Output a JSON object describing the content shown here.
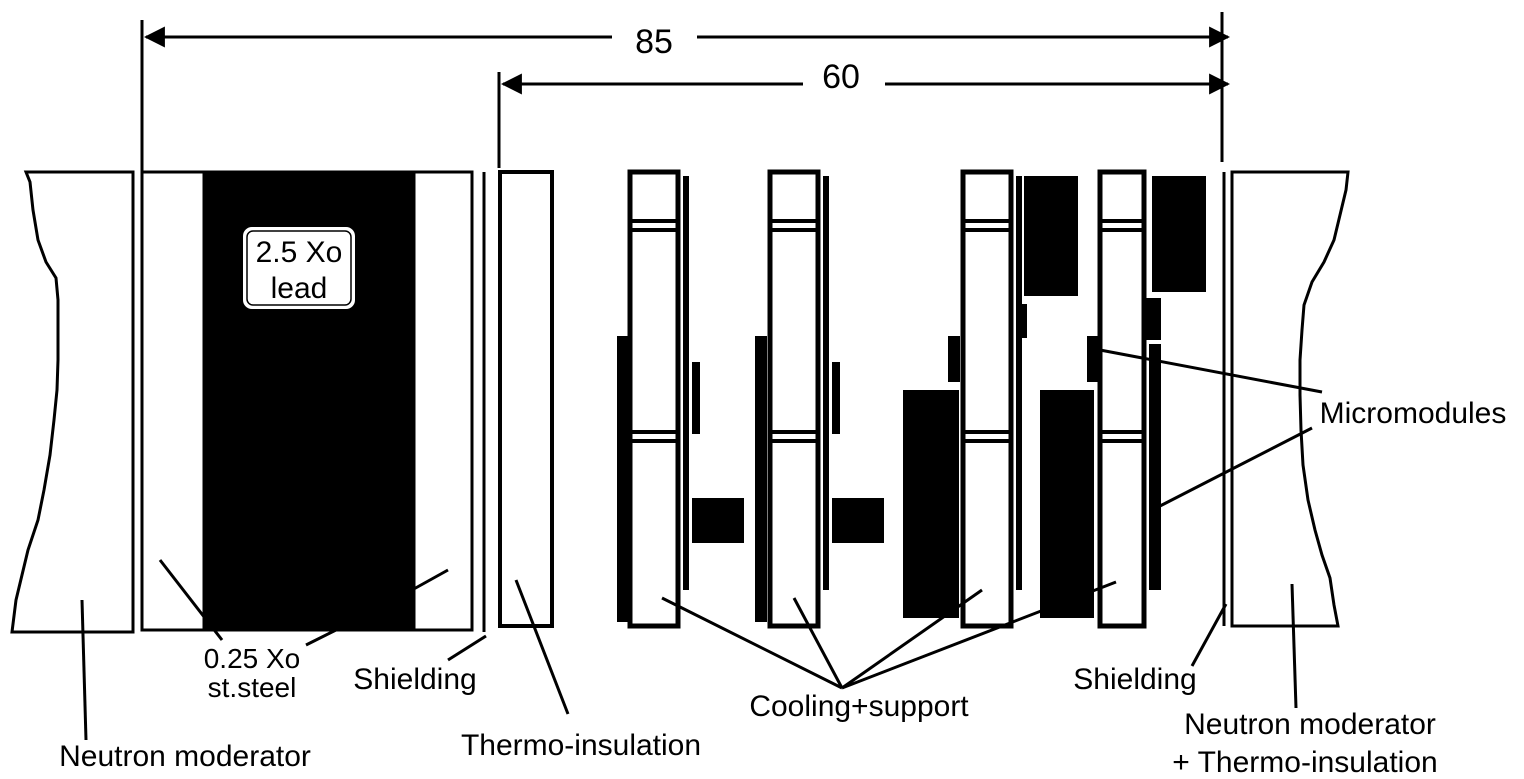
{
  "dimensions": {
    "outer": "85",
    "inner": "60"
  },
  "labels": {
    "lead_line1": "2.5 Xo",
    "lead_line2": "lead",
    "steel_line1": "0.25 Xo",
    "steel_line2": "st.steel",
    "shielding_left": "Shielding",
    "shielding_right": "Shielding",
    "thermo_insulation": "Thermo-insulation",
    "cooling_support": "Cooling+support",
    "micromodules": "Micromodules",
    "neutron_moderator_left": "Neutron moderator",
    "neutron_moderator_right_line1": "Neutron moderator",
    "neutron_moderator_right_line2": "+ Thermo-insulation"
  },
  "colors": {
    "ink": "#000000",
    "paper": "#ffffff"
  }
}
